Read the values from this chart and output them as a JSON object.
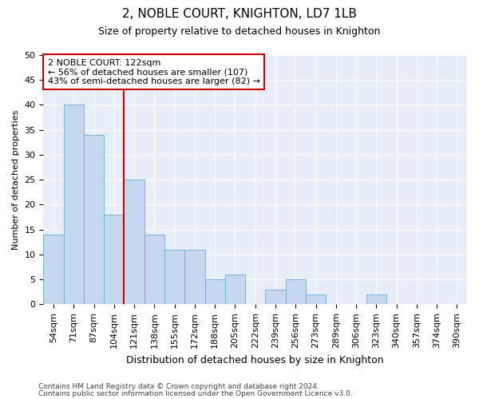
{
  "title": "2, NOBLE COURT, KNIGHTON, LD7 1LB",
  "subtitle": "Size of property relative to detached houses in Knighton",
  "xlabel": "Distribution of detached houses by size in Knighton",
  "ylabel": "Number of detached properties",
  "categories": [
    "54sqm",
    "71sqm",
    "87sqm",
    "104sqm",
    "121sqm",
    "138sqm",
    "155sqm",
    "172sqm",
    "188sqm",
    "205sqm",
    "222sqm",
    "239sqm",
    "256sqm",
    "273sqm",
    "289sqm",
    "306sqm",
    "323sqm",
    "340sqm",
    "357sqm",
    "374sqm",
    "390sqm"
  ],
  "values": [
    14,
    40,
    34,
    18,
    25,
    14,
    11,
    11,
    5,
    6,
    0,
    3,
    5,
    2,
    0,
    0,
    2,
    0,
    0,
    0,
    0
  ],
  "bar_color": "#c5d8ef",
  "bar_edge_color": "#6aaad4",
  "vline_color": "#cc0000",
  "vline_x_index": 4,
  "annotation_text_line1": "2 NOBLE COURT: 122sqm",
  "annotation_text_line2": "← 56% of detached houses are smaller (107)",
  "annotation_text_line3": "43% of semi-detached houses are larger (82) →",
  "annotation_box_color": "#ffffff",
  "annotation_box_edge_color": "#cc0000",
  "ylim": [
    0,
    50
  ],
  "yticks": [
    0,
    5,
    10,
    15,
    20,
    25,
    30,
    35,
    40,
    45,
    50
  ],
  "background_color": "#e8eef7",
  "grid_color": "#ffffff",
  "footer_line1": "Contains HM Land Registry data © Crown copyright and database right 2024.",
  "footer_line2": "Contains public sector information licensed under the Open Government Licence v3.0.",
  "title_fontsize": 11,
  "subtitle_fontsize": 9,
  "ylabel_fontsize": 8,
  "xlabel_fontsize": 9,
  "tick_fontsize": 8,
  "annotation_fontsize": 8,
  "footer_fontsize": 6.5
}
